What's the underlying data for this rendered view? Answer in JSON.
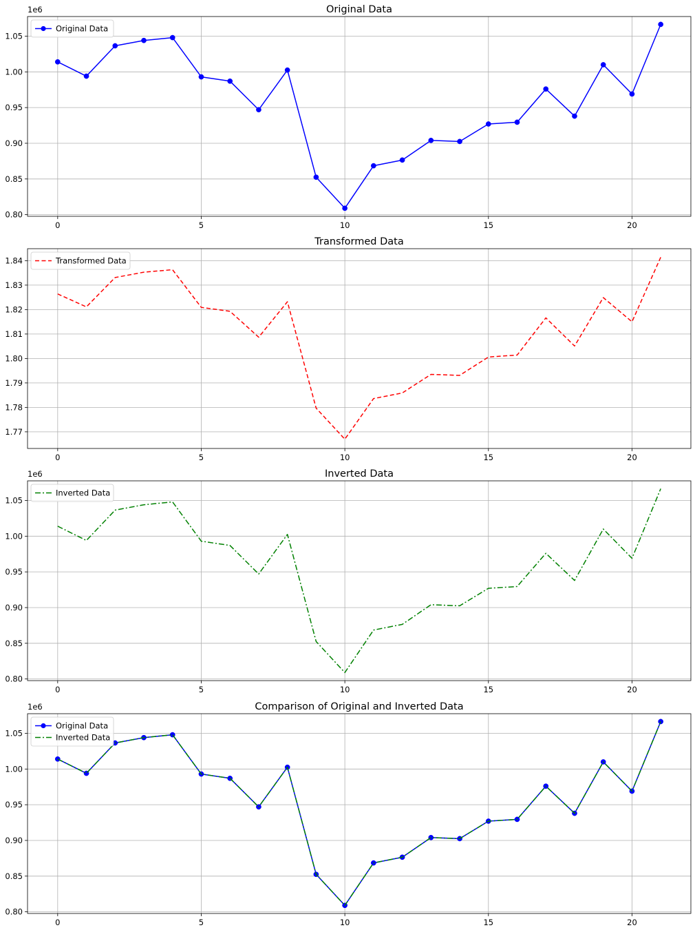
{
  "chart_data": [
    {
      "type": "line",
      "title": "Original Data",
      "offset_label": "1e6",
      "x": [
        0,
        1,
        2,
        3,
        4,
        5,
        6,
        7,
        8,
        9,
        10,
        11,
        12,
        13,
        14,
        15,
        16,
        17,
        18,
        19,
        20,
        21
      ],
      "xlim": [
        -1.05,
        22.05
      ],
      "xticks": [
        0,
        5,
        10,
        15,
        20
      ],
      "xtick_labels": [
        "0",
        "5",
        "10",
        "15",
        "20"
      ],
      "ylim": [
        797700,
        1077500
      ],
      "yticks": [
        800000,
        850000,
        900000,
        950000,
        1000000,
        1050000
      ],
      "ytick_labels": [
        "0.80",
        "0.85",
        "0.90",
        "0.95",
        "1.00",
        "1.05"
      ],
      "grid": true,
      "legend_position": "upper left",
      "series": [
        {
          "name": "Original Data",
          "color": "#0000ff",
          "line_style": "solid",
          "marker": "circle",
          "values": [
            1014000,
            994000,
            1036500,
            1044000,
            1048000,
            993000,
            987000,
            947000,
            1002500,
            852500,
            809000,
            868500,
            876500,
            904000,
            902500,
            927000,
            929500,
            976000,
            938000,
            1010000,
            969000,
            1066500
          ]
        }
      ]
    },
    {
      "type": "line",
      "title": "Transformed Data",
      "offset_label": "",
      "x": [
        0,
        1,
        2,
        3,
        4,
        5,
        6,
        7,
        8,
        9,
        10,
        11,
        12,
        13,
        14,
        15,
        16,
        17,
        18,
        19,
        20,
        21
      ],
      "xlim": [
        -1.05,
        22.05
      ],
      "xticks": [
        0,
        5,
        10,
        15,
        20
      ],
      "xtick_labels": [
        "0",
        "5",
        "10",
        "15",
        "20"
      ],
      "ylim": [
        1.7632,
        1.8449
      ],
      "yticks": [
        1.77,
        1.78,
        1.79,
        1.8,
        1.81,
        1.82,
        1.83,
        1.84
      ],
      "ytick_labels": [
        "1.77",
        "1.78",
        "1.79",
        "1.80",
        "1.81",
        "1.82",
        "1.83",
        "1.84"
      ],
      "grid": true,
      "legend_position": "upper left",
      "series": [
        {
          "name": "Transformed Data",
          "color": "#ff0000",
          "line_style": "dashed",
          "marker": "none",
          "values": [
            1.8264,
            1.8211,
            1.8331,
            1.8353,
            1.8363,
            1.8209,
            1.8193,
            1.8087,
            1.8232,
            1.7797,
            1.767,
            1.7836,
            1.7859,
            1.7935,
            1.7931,
            1.8006,
            1.8014,
            1.8166,
            1.8051,
            1.8249,
            1.815,
            1.8414
          ]
        }
      ]
    },
    {
      "type": "line",
      "title": "Inverted Data",
      "offset_label": "1e6",
      "x": [
        0,
        1,
        2,
        3,
        4,
        5,
        6,
        7,
        8,
        9,
        10,
        11,
        12,
        13,
        14,
        15,
        16,
        17,
        18,
        19,
        20,
        21
      ],
      "xlim": [
        -1.05,
        22.05
      ],
      "xticks": [
        0,
        5,
        10,
        15,
        20
      ],
      "xtick_labels": [
        "0",
        "5",
        "10",
        "15",
        "20"
      ],
      "ylim": [
        797700,
        1077500
      ],
      "yticks": [
        800000,
        850000,
        900000,
        950000,
        1000000,
        1050000
      ],
      "ytick_labels": [
        "0.80",
        "0.85",
        "0.90",
        "0.95",
        "1.00",
        "1.05"
      ],
      "grid": true,
      "legend_position": "upper left",
      "series": [
        {
          "name": "Inverted Data",
          "color": "#008000",
          "line_style": "dashdot",
          "marker": "none",
          "values": [
            1014000,
            994000,
            1036500,
            1044000,
            1048000,
            993000,
            987000,
            947000,
            1002500,
            852500,
            809000,
            868500,
            876500,
            904000,
            902500,
            927000,
            929500,
            976000,
            938000,
            1010000,
            969000,
            1066500
          ]
        }
      ]
    },
    {
      "type": "line",
      "title": "Comparison of Original and Inverted Data",
      "offset_label": "1e6",
      "x": [
        0,
        1,
        2,
        3,
        4,
        5,
        6,
        7,
        8,
        9,
        10,
        11,
        12,
        13,
        14,
        15,
        16,
        17,
        18,
        19,
        20,
        21
      ],
      "xlim": [
        -1.05,
        22.05
      ],
      "xticks": [
        0,
        5,
        10,
        15,
        20
      ],
      "xtick_labels": [
        "0",
        "5",
        "10",
        "15",
        "20"
      ],
      "ylim": [
        797700,
        1077500
      ],
      "yticks": [
        800000,
        850000,
        900000,
        950000,
        1000000,
        1050000
      ],
      "ytick_labels": [
        "0.80",
        "0.85",
        "0.90",
        "0.95",
        "1.00",
        "1.05"
      ],
      "grid": true,
      "legend_position": "upper left",
      "series": [
        {
          "name": "Original Data",
          "color": "#0000ff",
          "line_style": "solid",
          "marker": "circle",
          "values": [
            1014000,
            994000,
            1036500,
            1044000,
            1048000,
            993000,
            987000,
            947000,
            1002500,
            852500,
            809000,
            868500,
            876500,
            904000,
            902500,
            927000,
            929500,
            976000,
            938000,
            1010000,
            969000,
            1066500
          ]
        },
        {
          "name": "Inverted Data",
          "color": "#008000",
          "line_style": "dashdot",
          "marker": "none",
          "values": [
            1014000,
            994000,
            1036500,
            1044000,
            1048000,
            993000,
            987000,
            947000,
            1002500,
            852500,
            809000,
            868500,
            876500,
            904000,
            902500,
            927000,
            929500,
            976000,
            938000,
            1010000,
            969000,
            1066500
          ]
        }
      ]
    }
  ]
}
